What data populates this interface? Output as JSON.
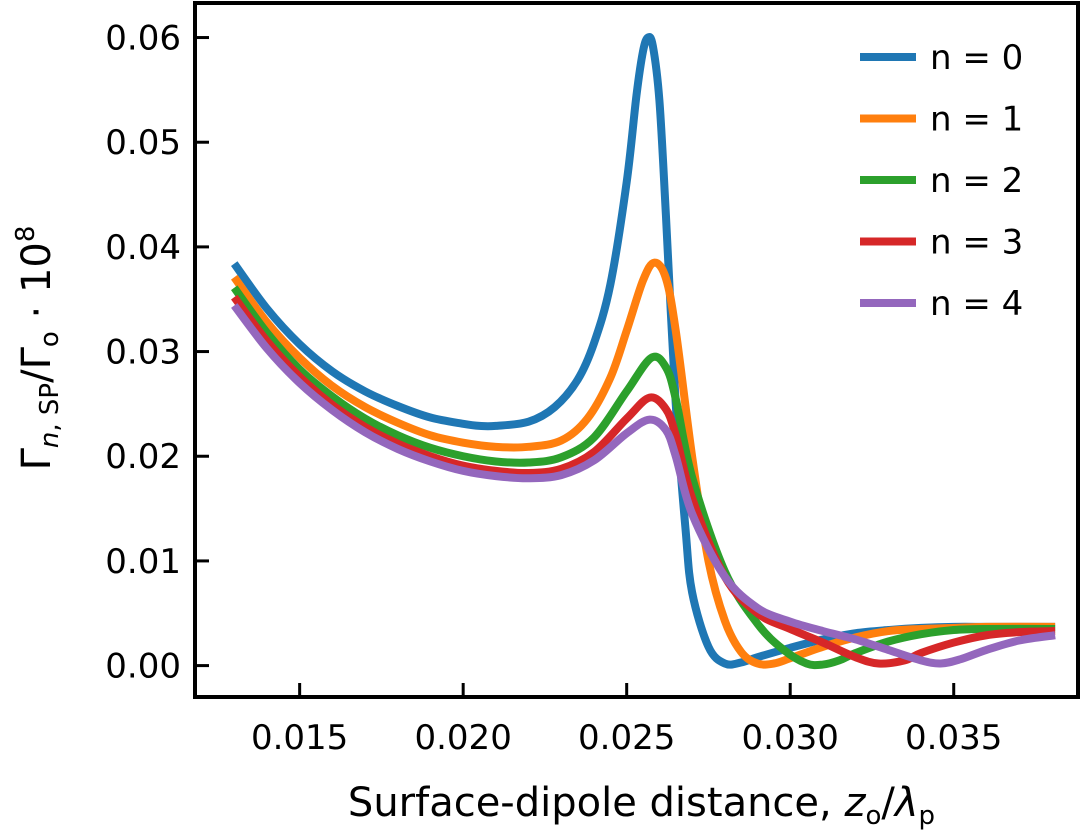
{
  "chart_data": {
    "type": "line",
    "title": "",
    "xlabel": {
      "text": "Surface-dipole distance, ",
      "var": "z",
      "var_sub": "o",
      "slash": "/",
      "var2": "λ",
      "var2_sub": "p"
    },
    "ylabel": {
      "gamma": "Γ",
      "sub_n": "n",
      "sub_rest": ", SP",
      "slash": "/Γ",
      "sub_o": "o",
      "dot": " · 10",
      "sup": "8"
    },
    "xlim": [
      0.0118,
      0.0388
    ],
    "ylim": [
      -0.003,
      0.0633
    ],
    "xticks": [
      0.015,
      0.02,
      0.025,
      0.03,
      0.035
    ],
    "xtick_labels": [
      "0.015",
      "0.020",
      "0.025",
      "0.030",
      "0.035"
    ],
    "yticks": [
      0.0,
      0.01,
      0.02,
      0.03,
      0.04,
      0.05,
      0.06
    ],
    "ytick_labels": [
      "0.00",
      "0.01",
      "0.02",
      "0.03",
      "0.04",
      "0.05",
      "0.06"
    ],
    "grid": false,
    "legend_position": "top-right",
    "series": [
      {
        "name": "n = 0",
        "color": "#1f77b4",
        "points": [
          [
            0.013,
            0.0384
          ],
          [
            0.014,
            0.0341
          ],
          [
            0.015,
            0.0307
          ],
          [
            0.016,
            0.0281
          ],
          [
            0.017,
            0.0262
          ],
          [
            0.018,
            0.0248
          ],
          [
            0.019,
            0.0237
          ],
          [
            0.02,
            0.0231
          ],
          [
            0.0205,
            0.0229
          ],
          [
            0.021,
            0.0229
          ],
          [
            0.022,
            0.0233
          ],
          [
            0.0228,
            0.0247
          ],
          [
            0.0235,
            0.0273
          ],
          [
            0.024,
            0.0308
          ],
          [
            0.0245,
            0.0364
          ],
          [
            0.025,
            0.0462
          ],
          [
            0.0253,
            0.0545
          ],
          [
            0.0255,
            0.0587
          ],
          [
            0.02565,
            0.06
          ],
          [
            0.0258,
            0.0592
          ],
          [
            0.026,
            0.054
          ],
          [
            0.0262,
            0.043
          ],
          [
            0.0265,
            0.025
          ],
          [
            0.0268,
            0.013
          ],
          [
            0.027,
            0.007
          ],
          [
            0.0275,
            0.0018
          ],
          [
            0.028,
            0.0002
          ],
          [
            0.0285,
            0.0003
          ],
          [
            0.029,
            0.0008
          ],
          [
            0.03,
            0.0017
          ],
          [
            0.031,
            0.0025
          ],
          [
            0.032,
            0.0031
          ],
          [
            0.033,
            0.0034
          ],
          [
            0.034,
            0.0036
          ],
          [
            0.035,
            0.0037
          ],
          [
            0.036,
            0.0037
          ],
          [
            0.037,
            0.0037
          ],
          [
            0.0381,
            0.0037
          ]
        ]
      },
      {
        "name": "n = 1",
        "color": "#ff7f0e",
        "points": [
          [
            0.013,
            0.0371
          ],
          [
            0.014,
            0.0328
          ],
          [
            0.015,
            0.0294
          ],
          [
            0.016,
            0.0267
          ],
          [
            0.017,
            0.0247
          ],
          [
            0.018,
            0.0232
          ],
          [
            0.019,
            0.022
          ],
          [
            0.02,
            0.0213
          ],
          [
            0.021,
            0.0209
          ],
          [
            0.022,
            0.0209
          ],
          [
            0.023,
            0.0215
          ],
          [
            0.0238,
            0.0236
          ],
          [
            0.0245,
            0.0275
          ],
          [
            0.025,
            0.032
          ],
          [
            0.0255,
            0.0368
          ],
          [
            0.02585,
            0.0385
          ],
          [
            0.0262,
            0.037
          ],
          [
            0.0265,
            0.032
          ],
          [
            0.027,
            0.02
          ],
          [
            0.0275,
            0.01
          ],
          [
            0.028,
            0.0043
          ],
          [
            0.0285,
            0.0013
          ],
          [
            0.029,
            0.0002
          ],
          [
            0.0295,
            0.0002
          ],
          [
            0.03,
            0.0007
          ],
          [
            0.031,
            0.0018
          ],
          [
            0.032,
            0.0027
          ],
          [
            0.033,
            0.0033
          ],
          [
            0.034,
            0.0035
          ],
          [
            0.035,
            0.0036
          ],
          [
            0.036,
            0.0037
          ],
          [
            0.0381,
            0.0037
          ]
        ]
      },
      {
        "name": "n = 2",
        "color": "#2ca02c",
        "points": [
          [
            0.013,
            0.0361
          ],
          [
            0.014,
            0.0318
          ],
          [
            0.015,
            0.0283
          ],
          [
            0.016,
            0.0257
          ],
          [
            0.017,
            0.0236
          ],
          [
            0.018,
            0.022
          ],
          [
            0.019,
            0.0208
          ],
          [
            0.02,
            0.02
          ],
          [
            0.021,
            0.0195
          ],
          [
            0.022,
            0.0194
          ],
          [
            0.023,
            0.0199
          ],
          [
            0.024,
            0.0218
          ],
          [
            0.025,
            0.0262
          ],
          [
            0.02575,
            0.0294
          ],
          [
            0.0262,
            0.0285
          ],
          [
            0.0265,
            0.0255
          ],
          [
            0.027,
            0.018
          ],
          [
            0.028,
            0.009
          ],
          [
            0.029,
            0.004
          ],
          [
            0.0298,
            0.0015
          ],
          [
            0.0305,
            0.0002
          ],
          [
            0.031,
            0.0001
          ],
          [
            0.0315,
            0.0005
          ],
          [
            0.032,
            0.0012
          ],
          [
            0.033,
            0.0023
          ],
          [
            0.034,
            0.003
          ],
          [
            0.035,
            0.0034
          ],
          [
            0.036,
            0.0035
          ],
          [
            0.0381,
            0.0035
          ]
        ]
      },
      {
        "name": "n = 3",
        "color": "#d62728",
        "points": [
          [
            0.013,
            0.0352
          ],
          [
            0.014,
            0.031
          ],
          [
            0.015,
            0.0276
          ],
          [
            0.016,
            0.0249
          ],
          [
            0.017,
            0.0228
          ],
          [
            0.018,
            0.0212
          ],
          [
            0.019,
            0.02
          ],
          [
            0.02,
            0.0191
          ],
          [
            0.021,
            0.0186
          ],
          [
            0.022,
            0.0184
          ],
          [
            0.023,
            0.0188
          ],
          [
            0.024,
            0.0204
          ],
          [
            0.025,
            0.0236
          ],
          [
            0.0257,
            0.0256
          ],
          [
            0.0262,
            0.0245
          ],
          [
            0.0265,
            0.022
          ],
          [
            0.027,
            0.016
          ],
          [
            0.028,
            0.0085
          ],
          [
            0.029,
            0.005
          ],
          [
            0.03,
            0.0035
          ],
          [
            0.031,
            0.0022
          ],
          [
            0.032,
            0.0008
          ],
          [
            0.0327,
            0.0002
          ],
          [
            0.0335,
            0.0005
          ],
          [
            0.034,
            0.0012
          ],
          [
            0.035,
            0.0022
          ],
          [
            0.036,
            0.0029
          ],
          [
            0.037,
            0.0032
          ],
          [
            0.0381,
            0.0033
          ]
        ]
      },
      {
        "name": "n = 4",
        "color": "#9467bd",
        "points": [
          [
            0.013,
            0.0344
          ],
          [
            0.014,
            0.0303
          ],
          [
            0.015,
            0.027
          ],
          [
            0.016,
            0.0244
          ],
          [
            0.017,
            0.0223
          ],
          [
            0.018,
            0.0207
          ],
          [
            0.019,
            0.0195
          ],
          [
            0.02,
            0.0186
          ],
          [
            0.021,
            0.0181
          ],
          [
            0.022,
            0.0179
          ],
          [
            0.023,
            0.0182
          ],
          [
            0.024,
            0.0196
          ],
          [
            0.025,
            0.0222
          ],
          [
            0.0257,
            0.0235
          ],
          [
            0.0262,
            0.0225
          ],
          [
            0.0265,
            0.02
          ],
          [
            0.027,
            0.0145
          ],
          [
            0.028,
            0.0085
          ],
          [
            0.029,
            0.0055
          ],
          [
            0.03,
            0.0042
          ],
          [
            0.031,
            0.0033
          ],
          [
            0.032,
            0.0025
          ],
          [
            0.033,
            0.0015
          ],
          [
            0.034,
            0.0005
          ],
          [
            0.0346,
            0.0002
          ],
          [
            0.0352,
            0.0006
          ],
          [
            0.036,
            0.0015
          ],
          [
            0.037,
            0.0024
          ],
          [
            0.0381,
            0.0029
          ]
        ]
      }
    ]
  }
}
